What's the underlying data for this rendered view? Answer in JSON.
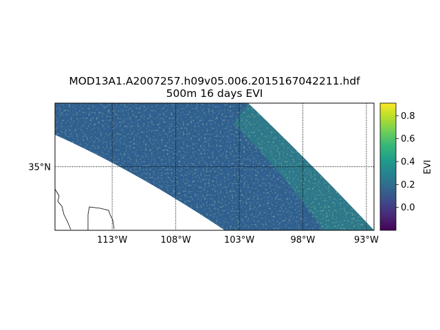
{
  "figure": {
    "title_line1": "MOD13A1.A2007257.h09v05.006.2015167042211.hdf",
    "title_line2": "500m 16 days EVI"
  },
  "map": {
    "projection": "cylindrical",
    "lon_range": [
      -117.5,
      -92.4
    ],
    "lat_range": [
      30.0,
      40.0
    ],
    "meridians": [
      {
        "lon": -113,
        "label": "113°W"
      },
      {
        "lon": -108,
        "label": "108°W"
      },
      {
        "lon": -103,
        "label": "103°W"
      },
      {
        "lon": -98,
        "label": "98°W"
      },
      {
        "lon": -93,
        "label": "93°W"
      }
    ],
    "parallels": [
      {
        "lat": 35,
        "label": "35°N"
      }
    ],
    "gridline_style": "dotted",
    "coastlines": true,
    "data_swath": "curved sinusoidal tile h09v05 (30°N–40°N)"
  },
  "colorbar": {
    "label": "EVI",
    "colormap": "viridis",
    "vmin": -0.2,
    "vmax": 0.91,
    "ticks": [
      {
        "value": 0.0,
        "label": "0.0"
      },
      {
        "value": 0.2,
        "label": "0.2"
      },
      {
        "value": 0.4,
        "label": "0.4"
      },
      {
        "value": 0.6,
        "label": "0.6"
      },
      {
        "value": 0.8,
        "label": "0.8"
      }
    ],
    "colors": [
      "#440154",
      "#482777",
      "#3e4989",
      "#31688e",
      "#26828e",
      "#1f9e89",
      "#35b779",
      "#6ece58",
      "#b5de2b",
      "#fde725"
    ]
  }
}
